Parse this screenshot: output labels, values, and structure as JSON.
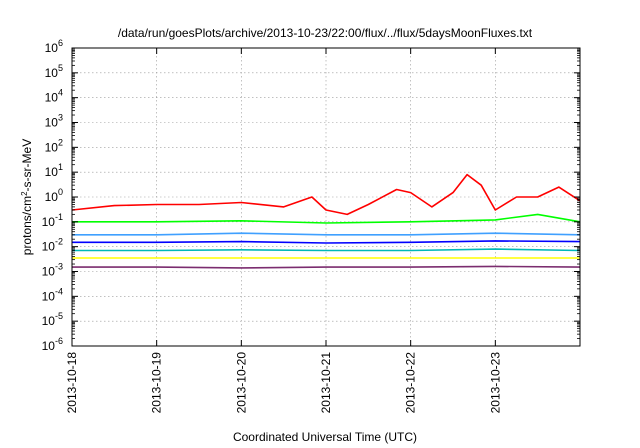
{
  "chart_data": {
    "type": "line",
    "title": "/data/run/goesPlots/archive/2013-10-23/22:00/flux/../flux/5daysMoonFluxes.txt",
    "xlabel": "Coordinated Universal Time (UTC)",
    "ylabel": "protons/cm²-s-sr-MeV",
    "ylabel_parts": {
      "pre": "protons/cm",
      "sup": "2",
      "post": "-s-sr-MeV"
    },
    "yscale": "log",
    "ylim": [
      1e-06,
      1000000.0
    ],
    "xlim": [
      "2013-10-18T00:00",
      "2013-10-24T00:00"
    ],
    "grid": true,
    "legend": "none",
    "x_ticks": [
      "2013-10-18",
      "2013-10-19",
      "2013-10-20",
      "2013-10-21",
      "2013-10-22",
      "2013-10-23"
    ],
    "y_ticks": [
      {
        "value": 1e-06,
        "base": "10",
        "exp": "-6"
      },
      {
        "value": 1e-05,
        "base": "10",
        "exp": "-5"
      },
      {
        "value": 0.0001,
        "base": "10",
        "exp": "-4"
      },
      {
        "value": 0.001,
        "base": "10",
        "exp": "-3"
      },
      {
        "value": 0.01,
        "base": "10",
        "exp": "-2"
      },
      {
        "value": 0.1,
        "base": "10",
        "exp": "-1"
      },
      {
        "value": 1,
        "base": "10",
        "exp": "0"
      },
      {
        "value": 10,
        "base": "10",
        "exp": "1"
      },
      {
        "value": 100,
        "base": "10",
        "exp": "2"
      },
      {
        "value": 1000.0,
        "base": "10",
        "exp": "3"
      },
      {
        "value": 10000.0,
        "base": "10",
        "exp": "4"
      },
      {
        "value": 100000.0,
        "base": "10",
        "exp": "5"
      },
      {
        "value": 1000000.0,
        "base": "10",
        "exp": "6"
      }
    ],
    "series": [
      {
        "color": "#ff0000",
        "x": [
          "2013-10-18T00:00",
          "2013-10-18T12:00",
          "2013-10-19T00:00",
          "2013-10-19T12:00",
          "2013-10-20T00:00",
          "2013-10-20T12:00",
          "2013-10-20T20:00",
          "2013-10-21T00:00",
          "2013-10-21T06:00",
          "2013-10-21T12:00",
          "2013-10-21T20:00",
          "2013-10-22T00:00",
          "2013-10-22T06:00",
          "2013-10-22T12:00",
          "2013-10-22T16:00",
          "2013-10-22T20:00",
          "2013-10-23T00:00",
          "2013-10-23T06:00",
          "2013-10-23T12:00",
          "2013-10-23T18:00",
          "2013-10-24T00:00"
        ],
        "values": [
          0.3,
          0.45,
          0.5,
          0.5,
          0.6,
          0.4,
          1.0,
          0.3,
          0.2,
          0.5,
          2.0,
          1.5,
          0.4,
          1.5,
          8.0,
          3.0,
          0.3,
          1.0,
          1.0,
          2.5,
          0.7
        ]
      },
      {
        "color": "#00ff00",
        "x": [
          "2013-10-18T00:00",
          "2013-10-19T00:00",
          "2013-10-20T00:00",
          "2013-10-21T00:00",
          "2013-10-22T00:00",
          "2013-10-23T00:00",
          "2013-10-23T12:00",
          "2013-10-24T00:00"
        ],
        "values": [
          0.1,
          0.1,
          0.11,
          0.09,
          0.1,
          0.12,
          0.2,
          0.1
        ]
      },
      {
        "color": "#3fa0ff",
        "x": [
          "2013-10-18T00:00",
          "2013-10-19T00:00",
          "2013-10-20T00:00",
          "2013-10-21T00:00",
          "2013-10-22T00:00",
          "2013-10-23T00:00",
          "2013-10-24T00:00"
        ],
        "values": [
          0.03,
          0.03,
          0.035,
          0.03,
          0.03,
          0.035,
          0.03
        ]
      },
      {
        "color": "#0000ff",
        "x": [
          "2013-10-18T00:00",
          "2013-10-19T00:00",
          "2013-10-20T00:00",
          "2013-10-21T00:00",
          "2013-10-22T00:00",
          "2013-10-23T00:00",
          "2013-10-24T00:00"
        ],
        "values": [
          0.015,
          0.015,
          0.016,
          0.014,
          0.015,
          0.017,
          0.016
        ]
      },
      {
        "color": "#00b8b8",
        "x": [
          "2013-10-18T00:00",
          "2013-10-19T00:00",
          "2013-10-20T00:00",
          "2013-10-21T00:00",
          "2013-10-22T00:00",
          "2013-10-23T00:00",
          "2013-10-24T00:00"
        ],
        "values": [
          0.007,
          0.007,
          0.0075,
          0.007,
          0.007,
          0.008,
          0.007
        ]
      },
      {
        "color": "#ffff00",
        "x": [
          "2013-10-18T00:00",
          "2013-10-24T00:00"
        ],
        "values": [
          0.0035,
          0.0035
        ]
      },
      {
        "color": "#7b2d6f",
        "x": [
          "2013-10-18T00:00",
          "2013-10-19T00:00",
          "2013-10-20T00:00",
          "2013-10-21T00:00",
          "2013-10-22T00:00",
          "2013-10-23T00:00",
          "2013-10-24T00:00"
        ],
        "values": [
          0.0015,
          0.0015,
          0.0014,
          0.0015,
          0.0015,
          0.0016,
          0.0015
        ]
      }
    ]
  }
}
